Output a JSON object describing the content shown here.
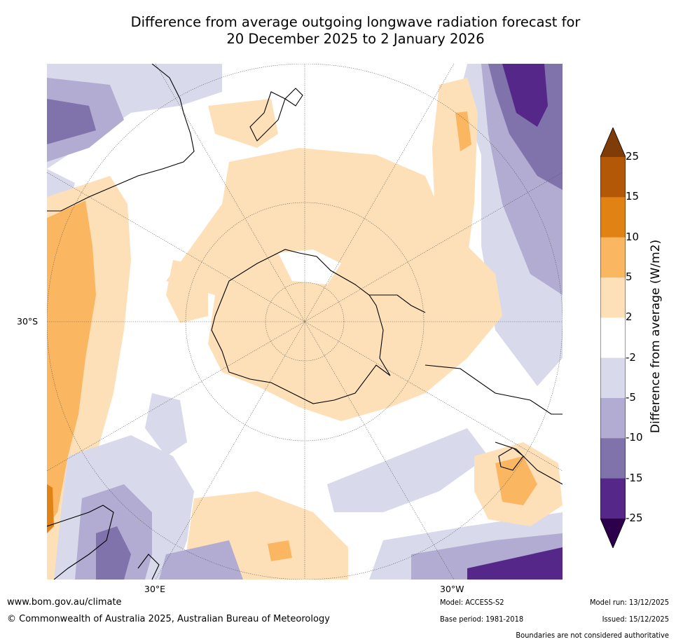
{
  "title": {
    "line1": "Difference from average outgoing longwave radiation forecast for",
    "line2": "20 December 2025 to 2 January 2026"
  },
  "map": {
    "projection": "south-polar",
    "labels": {
      "lat": "30°S",
      "lon_e": "30°E",
      "lon_w": "30°W"
    },
    "colors": {
      "pos_2_5": "#fde0b8",
      "pos_5_10": "#fbb662",
      "pos_10_15": "#e08214",
      "pos_15_25": "#b35806",
      "pos_gt25": "#7f3b08",
      "neg_2_5": "#d8daeb",
      "neg_5_10": "#b2abd2",
      "neg_10_15": "#8073ac",
      "neg_15_25": "#542788",
      "neg_lt25": "#2d004b"
    }
  },
  "colorbar": {
    "title": "Difference from average (W/m2)",
    "ticks": [
      "25",
      "15",
      "10",
      "5",
      "2",
      "-2",
      "-5",
      "-10",
      "-15",
      "-25"
    ],
    "colors": [
      "#7f3b08",
      "#b35806",
      "#e08214",
      "#fbb662",
      "#fde0b8",
      "#ffffff",
      "#d8daeb",
      "#b2abd2",
      "#8073ac",
      "#542788",
      "#2d004b"
    ]
  },
  "footer": {
    "website": "www.bom.gov.au/climate",
    "copyright": "© Commonwealth of Australia 2025, Australian Bureau of Meteorology",
    "model": "Model: ACCESS-S2",
    "base_period": "Base period: 1981-2018",
    "model_run": "Model run: 13/12/2025",
    "issued": "Issued: 15/12/2025",
    "disclaimer": "Boundaries are not considered authoritative"
  }
}
